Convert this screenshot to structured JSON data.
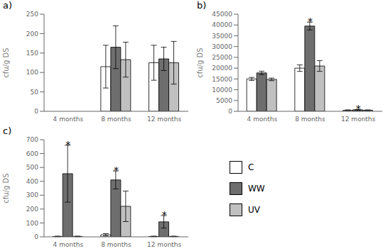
{
  "chart_data": [
    {
      "type": "bar",
      "title": "a)",
      "y_label": "cfu/g DS",
      "categories": [
        "4 months",
        "8 months",
        "12 months"
      ],
      "series": [
        {
          "name": "C",
          "color": "#ffffff",
          "values": [
            0,
            115,
            125
          ],
          "errors": [
            0,
            55,
            45
          ]
        },
        {
          "name": "WW",
          "color": "#6e6e6e",
          "values": [
            0,
            165,
            135
          ],
          "errors": [
            0,
            55,
            30
          ]
        },
        {
          "name": "UV",
          "color": "#c0c0c0",
          "values": [
            0,
            133,
            125
          ],
          "errors": [
            0,
            45,
            55
          ]
        }
      ],
      "ylim": [
        0,
        250
      ],
      "yticks": [
        0,
        50,
        100,
        150,
        200,
        250
      ],
      "grid": false
    },
    {
      "type": "bar",
      "title": "b)",
      "y_label": "cfu/g DS",
      "categories": [
        "4 months",
        "8 months",
        "12 months"
      ],
      "series": [
        {
          "name": "C",
          "color": "#ffffff",
          "values": [
            15000,
            20000,
            500
          ],
          "errors": [
            700,
            1500,
            150
          ]
        },
        {
          "name": "WW",
          "color": "#6e6e6e",
          "values": [
            17800,
            39500,
            700
          ],
          "errors": [
            800,
            1800,
            150
          ]
        },
        {
          "name": "UV",
          "color": "#c0c0c0",
          "values": [
            14800,
            21000,
            500
          ],
          "errors": [
            600,
            2500,
            150
          ]
        }
      ],
      "ylim": [
        0,
        45000
      ],
      "yticks": [
        0,
        5000,
        10000,
        15000,
        20000,
        25000,
        30000,
        35000,
        40000,
        45000
      ],
      "grid": false,
      "annotations": [
        {
          "text": "*",
          "category": "8 months",
          "series": "WW"
        },
        {
          "text": "*",
          "category": "12 months",
          "series": "WW"
        }
      ]
    },
    {
      "type": "bar",
      "title": "c)",
      "y_label": "cfu/g DS",
      "categories": [
        "4 months",
        "8 months",
        "12 months"
      ],
      "series": [
        {
          "name": "C",
          "color": "#ffffff",
          "values": [
            3,
            15,
            3
          ],
          "errors": [
            2,
            8,
            2
          ]
        },
        {
          "name": "WW",
          "color": "#6e6e6e",
          "values": [
            455,
            410,
            108
          ],
          "errors": [
            205,
            65,
            45
          ]
        },
        {
          "name": "UV",
          "color": "#c0c0c0",
          "values": [
            3,
            220,
            3
          ],
          "errors": [
            2,
            110,
            2
          ]
        }
      ],
      "ylim": [
        0,
        700
      ],
      "yticks": [
        0,
        100,
        200,
        300,
        400,
        500,
        600,
        700
      ],
      "grid": false,
      "annotations": [
        {
          "text": "*",
          "category": "4 months",
          "series": "WW"
        },
        {
          "text": "*",
          "category": "8 months",
          "series": "WW"
        },
        {
          "text": "*",
          "category": "12 months",
          "series": "WW"
        }
      ]
    }
  ]
}
